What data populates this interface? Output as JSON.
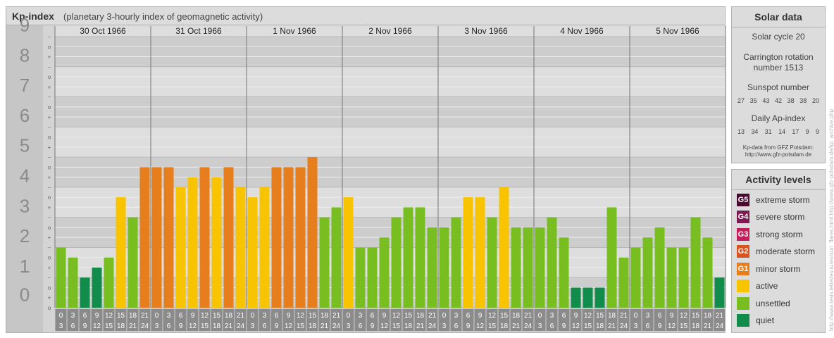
{
  "header": {
    "title": "Kp-index",
    "subtitle": "(planetary 3-hourly index of geomagnetic activity)"
  },
  "chart_data": {
    "type": "bar",
    "ylim": [
      0,
      9
    ],
    "y_ticks": [
      "0",
      "1",
      "2",
      "3",
      "4",
      "5",
      "6",
      "7",
      "8",
      "9"
    ],
    "sub_ticks": [
      "+",
      "o",
      "−"
    ],
    "days": [
      "30 Oct 1966",
      "31 Oct 1966",
      "1 Nov 1966",
      "2 Nov 1966",
      "3 Nov 1966",
      "4 Nov 1966",
      "5 Nov 1966"
    ],
    "interval_start": [
      "0",
      "3",
      "6",
      "9",
      "12",
      "15",
      "18",
      "21"
    ],
    "interval_end": [
      "3",
      "6",
      "9",
      "12",
      "15",
      "18",
      "21",
      "24"
    ],
    "values": [
      2.0,
      1.667,
      1.0,
      1.333,
      1.667,
      3.667,
      3.0,
      4.667,
      4.667,
      4.667,
      4.0,
      4.333,
      4.667,
      4.333,
      4.667,
      4.0,
      3.667,
      4.0,
      4.667,
      4.667,
      4.667,
      5.0,
      3.0,
      3.333,
      3.667,
      2.0,
      2.0,
      2.333,
      3.0,
      3.333,
      3.333,
      2.667,
      2.667,
      3.0,
      3.667,
      3.667,
      3.0,
      4.0,
      2.667,
      2.667,
      2.667,
      3.0,
      2.333,
      0.667,
      0.667,
      0.667,
      3.333,
      1.667,
      2.0,
      2.333,
      2.667,
      2.0,
      2.0,
      3.0,
      2.333,
      1.0
    ],
    "colors": {
      "quiet": "#128c4a",
      "unsettled": "#78be21",
      "active": "#f8c400",
      "minor": "#e67e1e",
      "moderate": "#d9531e",
      "strong": "#c41d5b",
      "severe": "#7d1a52",
      "extreme": "#4a0b33"
    }
  },
  "solar": {
    "title": "Solar data",
    "cycle": "Solar cycle 20",
    "carrington_1": "Carrington rotation",
    "carrington_2": "number 1513",
    "sunspot_title": "Sunspot number",
    "sunspot": [
      "27",
      "35",
      "43",
      "42",
      "38",
      "38",
      "20"
    ],
    "ap_title": "Daily Ap-index",
    "ap": [
      "13",
      "34",
      "31",
      "14",
      "17",
      "9",
      "9"
    ],
    "source_1": "Kp-data from GFZ Potsdam:",
    "source_2": "http://www.gfz-potsdam.de"
  },
  "legend": {
    "title": "Activity levels",
    "items": [
      {
        "code": "G5",
        "label": "extreme storm",
        "color": "#4a0b33"
      },
      {
        "code": "G4",
        "label": "severe storm",
        "color": "#7d1a52"
      },
      {
        "code": "G3",
        "label": "strong storm",
        "color": "#c41d5b"
      },
      {
        "code": "G2",
        "label": "moderate storm",
        "color": "#d9531e"
      },
      {
        "code": "G1",
        "label": "minor storm",
        "color": "#e67e1e"
      },
      {
        "code": "",
        "label": "active",
        "color": "#f8c400"
      },
      {
        "code": "",
        "label": "unsettled",
        "color": "#78be21"
      },
      {
        "code": "",
        "label": "quiet",
        "color": "#128c4a"
      }
    ]
  },
  "watermark": "http://www.tesis.lebedev.ru/en/sun_flares.html   http://www.gfz-potsdam.de/kp_archive.php"
}
